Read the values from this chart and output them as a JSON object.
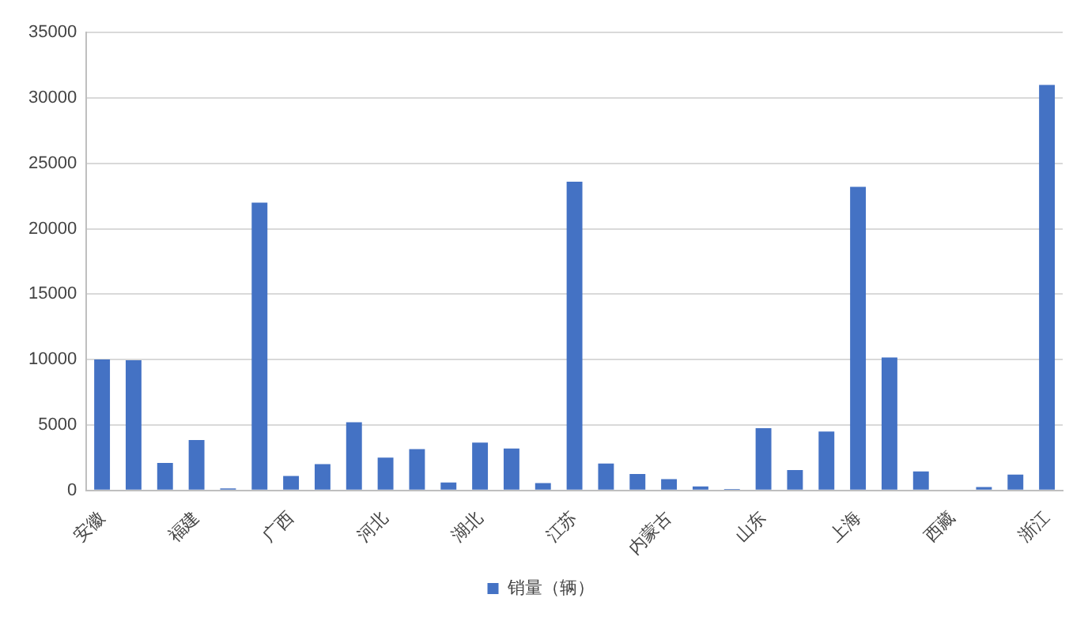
{
  "chart_data": {
    "type": "bar",
    "categories": [
      "安徽",
      null,
      null,
      "福建",
      null,
      null,
      "广西",
      null,
      null,
      "河北",
      null,
      null,
      "湖北",
      null,
      null,
      "江苏",
      null,
      null,
      "内蒙古",
      null,
      null,
      "山东",
      null,
      null,
      "上海",
      null,
      null,
      "西藏",
      null,
      null,
      "浙江"
    ],
    "series": [
      {
        "name": "销量（辆）",
        "color": "#4472c4",
        "values": [
          10000,
          9950,
          2100,
          3850,
          150,
          22000,
          1100,
          2000,
          5200,
          2500,
          3150,
          600,
          3650,
          3200,
          550,
          23600,
          2050,
          1250,
          850,
          300,
          100,
          4750,
          1550,
          4500,
          23200,
          10150,
          1450,
          0,
          250,
          1200,
          31000
        ]
      }
    ],
    "ylim": [
      0,
      35000
    ],
    "yticks": [
      0,
      5000,
      10000,
      15000,
      20000,
      25000,
      30000,
      35000
    ],
    "grid": "y",
    "legend": "bottom"
  }
}
